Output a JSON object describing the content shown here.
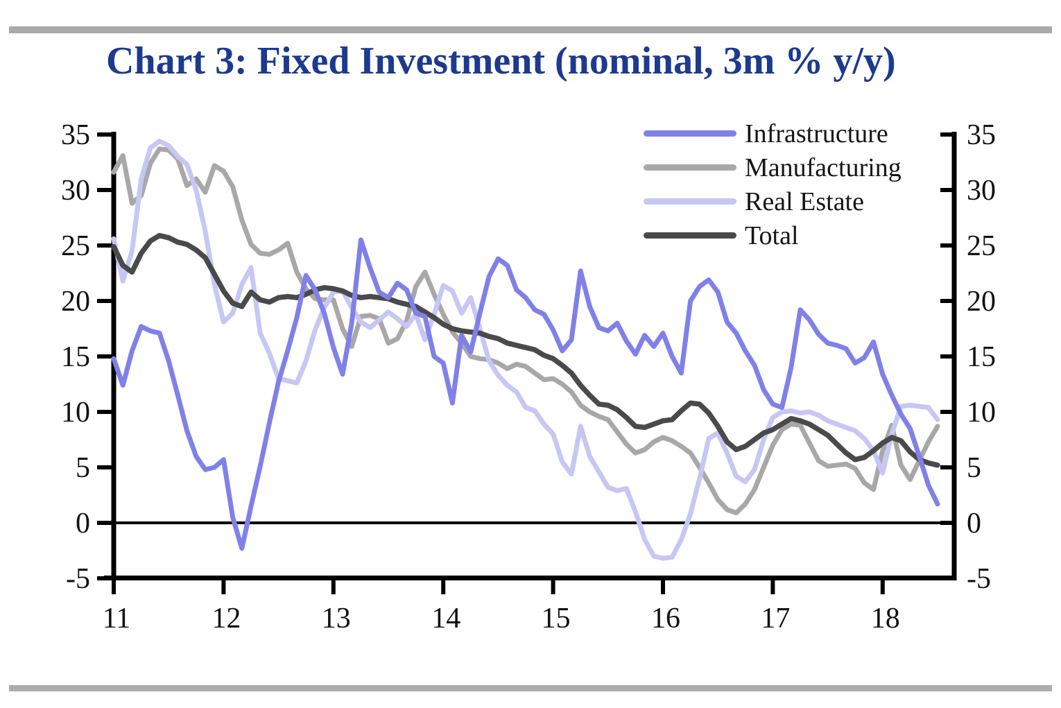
{
  "title": "Chart 3: Fixed Investment (nominal, 3m % y/y)",
  "chart_data": {
    "type": "line",
    "x_start_year": 2011,
    "x_frequency": "monthly",
    "x_end": "2018-07",
    "x_tick_labels": [
      "11",
      "12",
      "13",
      "14",
      "15",
      "16",
      "17",
      "18"
    ],
    "y_ticks": [
      35,
      30,
      25,
      20,
      15,
      10,
      5,
      0,
      -5
    ],
    "ylim": [
      -5,
      35
    ],
    "xlim_years": [
      2011.0,
      2018.65
    ],
    "zero_line": true,
    "legend_position": "top-right",
    "grid": false,
    "series": [
      {
        "name": "Infrastructure",
        "color": "#7f81e9",
        "values": [
          14.8,
          12.4,
          15.5,
          17.7,
          17.3,
          17.1,
          14.6,
          11.5,
          8.3,
          6.0,
          4.8,
          5.0,
          5.7,
          0.5,
          -2.3,
          1.5,
          5.1,
          9.0,
          12.7,
          15.5,
          18.5,
          22.3,
          21.0,
          18.9,
          15.8,
          13.4,
          18.0,
          25.5,
          23.0,
          20.8,
          20.3,
          21.6,
          21.0,
          18.9,
          18.6,
          15.0,
          14.4,
          10.8,
          16.9,
          15.4,
          18.9,
          22.2,
          23.8,
          23.2,
          21.0,
          20.3,
          19.2,
          18.8,
          17.4,
          15.5,
          16.5,
          22.7,
          19.5,
          17.6,
          17.3,
          18.0,
          16.4,
          15.2,
          16.9,
          15.9,
          17.1,
          15.0,
          13.5,
          20.0,
          21.3,
          21.9,
          20.8,
          18.1,
          17.1,
          15.5,
          14.2,
          12.0,
          10.7,
          10.4,
          14.0,
          19.2,
          18.3,
          17.0,
          16.2,
          16.0,
          15.7,
          14.4,
          14.9,
          16.3,
          13.4,
          11.5,
          9.8,
          8.5,
          6.0,
          3.4,
          1.7
        ]
      },
      {
        "name": "Manufacturing",
        "color": "#a8a8a8",
        "values": [
          31.6,
          33.1,
          28.8,
          29.5,
          32.4,
          33.7,
          33.6,
          32.8,
          30.4,
          31.0,
          29.8,
          32.2,
          31.7,
          30.3,
          27.3,
          25.1,
          24.3,
          24.2,
          24.6,
          25.2,
          22.6,
          21.1,
          20.2,
          20.1,
          20.1,
          17.5,
          15.9,
          18.6,
          18.7,
          18.4,
          16.2,
          16.6,
          18.2,
          21.3,
          22.6,
          20.6,
          18.8,
          17.2,
          16.2,
          15.0,
          14.8,
          14.7,
          14.4,
          13.9,
          14.3,
          14.1,
          13.5,
          12.9,
          13.0,
          12.5,
          11.8,
          10.6,
          10.0,
          9.6,
          9.3,
          8.2,
          7.1,
          6.3,
          6.6,
          7.3,
          7.7,
          7.4,
          6.9,
          6.3,
          5.0,
          3.6,
          2.1,
          1.2,
          0.9,
          1.7,
          3.0,
          5.0,
          7.0,
          8.4,
          8.9,
          8.8,
          7.2,
          5.6,
          5.1,
          5.2,
          5.3,
          4.9,
          3.6,
          3.0,
          6.5,
          8.8,
          5.2,
          3.9,
          5.6,
          7.3,
          8.7
        ]
      },
      {
        "name": "Real Estate",
        "color": "#c6c7f4",
        "values": [
          25.6,
          21.8,
          24.5,
          31.0,
          33.8,
          34.4,
          34.0,
          33.0,
          32.3,
          30.0,
          26.3,
          21.5,
          18.1,
          18.9,
          21.5,
          23.0,
          17.1,
          15.3,
          13.0,
          12.8,
          12.6,
          14.6,
          17.4,
          19.4,
          20.8,
          20.9,
          19.4,
          18.1,
          17.6,
          18.3,
          19.0,
          18.4,
          17.7,
          18.8,
          16.5,
          18.8,
          21.4,
          20.9,
          18.9,
          20.3,
          17.5,
          14.6,
          13.3,
          12.4,
          11.8,
          10.4,
          10.1,
          8.9,
          8.0,
          5.5,
          4.4,
          8.7,
          6.0,
          4.6,
          3.2,
          2.9,
          3.1,
          1.0,
          -1.5,
          -3.0,
          -3.2,
          -3.1,
          -1.5,
          0.8,
          4.0,
          7.6,
          8.1,
          6.3,
          4.2,
          3.7,
          4.8,
          7.5,
          9.5,
          10.0,
          10.1,
          9.9,
          10.0,
          9.7,
          9.2,
          8.9,
          8.6,
          8.3,
          7.6,
          6.5,
          4.5,
          8.0,
          10.5,
          10.6,
          10.5,
          10.4,
          9.3
        ]
      },
      {
        "name": "Total",
        "color": "#4a4a4a",
        "values": [
          24.9,
          23.2,
          22.6,
          24.3,
          25.4,
          25.9,
          25.7,
          25.3,
          25.1,
          24.6,
          23.9,
          22.4,
          20.9,
          19.8,
          19.5,
          20.8,
          20.1,
          19.9,
          20.3,
          20.4,
          20.3,
          20.6,
          21.0,
          21.2,
          21.1,
          20.9,
          20.5,
          20.3,
          20.4,
          20.3,
          20.2,
          19.9,
          19.7,
          19.5,
          19.0,
          18.5,
          17.9,
          17.5,
          17.3,
          17.2,
          17.1,
          16.8,
          16.6,
          16.2,
          16.0,
          15.8,
          15.6,
          15.1,
          14.8,
          14.2,
          13.5,
          12.4,
          11.5,
          10.7,
          10.6,
          10.2,
          9.5,
          8.7,
          8.6,
          8.9,
          9.2,
          9.3,
          10.1,
          10.8,
          10.7,
          9.9,
          8.7,
          7.3,
          6.6,
          6.9,
          7.5,
          8.1,
          8.4,
          8.9,
          9.4,
          9.2,
          8.9,
          8.4,
          7.9,
          7.1,
          6.3,
          5.7,
          5.9,
          6.5,
          7.2,
          7.7,
          7.4,
          6.4,
          5.7,
          5.4,
          5.2
        ]
      }
    ]
  },
  "style": {
    "title_color": "#1c3a8e",
    "axis_color": "#000000",
    "label_color": "#111111",
    "divider_color": "#a9a9a9",
    "background": "#ffffff"
  }
}
